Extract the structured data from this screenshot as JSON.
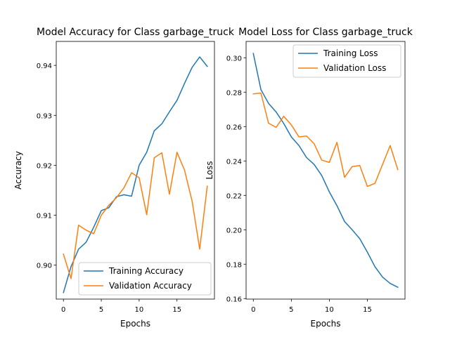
{
  "chart_data": [
    {
      "type": "line",
      "title": "Model Accuracy for Class garbage_truck",
      "xlabel": "Epochs",
      "ylabel": "Accuracy",
      "x": [
        0,
        1,
        2,
        3,
        4,
        5,
        6,
        7,
        8,
        9,
        10,
        11,
        12,
        13,
        14,
        15,
        16,
        17,
        18,
        19
      ],
      "xlim": [
        -0.95,
        19.95
      ],
      "ylim": [
        0.8932,
        0.9448
      ],
      "xticks": [
        0,
        5,
        10,
        15
      ],
      "xtick_labels": [
        "0",
        "5",
        "10",
        "15"
      ],
      "yticks": [
        0.9,
        0.91,
        0.92,
        0.93,
        0.94
      ],
      "ytick_labels": [
        "0.90",
        "0.91",
        "0.92",
        "0.93",
        "0.94"
      ],
      "legend_position": "lower-right",
      "series": [
        {
          "name": "Training Accuracy",
          "color": "#1f77b4",
          "values": [
            0.8945,
            0.8997,
            0.9032,
            0.9046,
            0.9076,
            0.9109,
            0.9115,
            0.9137,
            0.9141,
            0.9138,
            0.92,
            0.9226,
            0.9269,
            0.9283,
            0.9307,
            0.933,
            0.9364,
            0.9396,
            0.9417,
            0.9398
          ]
        },
        {
          "name": "Validation Accuracy",
          "color": "#ff7f0e",
          "values": [
            0.9022,
            0.8973,
            0.908,
            0.907,
            0.9063,
            0.91,
            0.912,
            0.9135,
            0.9155,
            0.9185,
            0.9175,
            0.9101,
            0.9215,
            0.9225,
            0.9142,
            0.9226,
            0.919,
            0.9128,
            0.9032,
            0.9158
          ]
        }
      ]
    },
    {
      "type": "line",
      "title": "Model Loss for Class garbage_truck",
      "xlabel": "Epochs",
      "ylabel": "Loss",
      "x": [
        0,
        1,
        2,
        3,
        4,
        5,
        6,
        7,
        8,
        9,
        10,
        11,
        12,
        13,
        14,
        15,
        16,
        17,
        18,
        19
      ],
      "xlim": [
        -0.95,
        19.95
      ],
      "ylim": [
        0.1597,
        0.3095
      ],
      "xticks": [
        0,
        5,
        10,
        15
      ],
      "xtick_labels": [
        "0",
        "5",
        "10",
        "15"
      ],
      "yticks": [
        0.16,
        0.18,
        0.2,
        0.22,
        0.24,
        0.26,
        0.28,
        0.3
      ],
      "ytick_labels": [
        "0.16",
        "0.18",
        "0.20",
        "0.22",
        "0.24",
        "0.26",
        "0.28",
        "0.30"
      ],
      "legend_position": "upper-right",
      "series": [
        {
          "name": "Training Loss",
          "color": "#1f77b4",
          "values": [
            0.3025,
            0.2815,
            0.2735,
            0.2685,
            0.2618,
            0.254,
            0.249,
            0.242,
            0.238,
            0.2315,
            0.222,
            0.214,
            0.2048,
            0.2,
            0.1948,
            0.187,
            0.1785,
            0.1725,
            0.1688,
            0.1666
          ]
        },
        {
          "name": "Validation Loss",
          "color": "#ff7f0e",
          "values": [
            0.279,
            0.2795,
            0.262,
            0.2595,
            0.266,
            0.261,
            0.254,
            0.2545,
            0.25,
            0.2405,
            0.2392,
            0.2508,
            0.2305,
            0.2367,
            0.2374,
            0.2252,
            0.227,
            0.238,
            0.249,
            0.235
          ]
        }
      ]
    }
  ]
}
